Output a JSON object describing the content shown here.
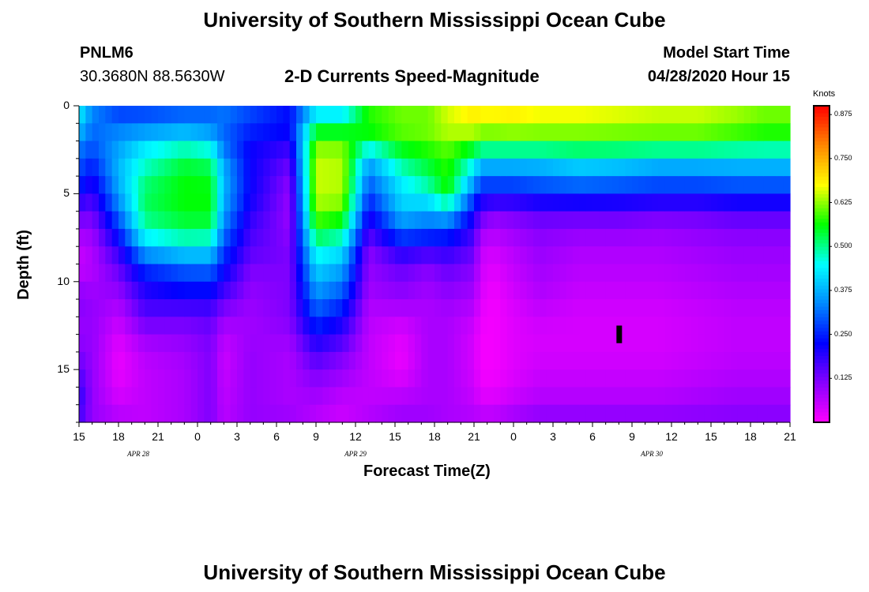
{
  "header": {
    "title": "University of Southern Mississippi Ocean Cube",
    "station_id": "PNLM6",
    "coordinates": "30.3680N 88.5630W",
    "plot_title": "2-D Currents Speed-Magnitude",
    "model_start_label": "Model Start Time",
    "model_start_value": "04/28/2020 Hour 15"
  },
  "footer": {
    "title": "University of Southern Mississippi Ocean Cube"
  },
  "colors": {
    "stops": [
      "#ff00ff",
      "#8800ff",
      "#0000ff",
      "#0088ff",
      "#00ffff",
      "#00ff00",
      "#ffff00",
      "#ff8800",
      "#ff0000"
    ],
    "marker": "#000000"
  },
  "chart_data": {
    "type": "heatmap",
    "title": "2-D Currents Speed-Magnitude",
    "xlabel": "Forecast Time(Z)",
    "ylabel": "Depth (ft)",
    "units": "Knots",
    "x_hours_range": [
      0,
      54
    ],
    "x_tick_labels": [
      "15",
      "18",
      "21",
      "0",
      "3",
      "6",
      "9",
      "12",
      "15",
      "18",
      "21",
      "0",
      "3",
      "6",
      "9",
      "12",
      "15",
      "18",
      "21"
    ],
    "date_labels": [
      {
        "label": "APR 28",
        "hour": 4.5
      },
      {
        "label": "APR 29",
        "hour": 21
      },
      {
        "label": "APR 30",
        "hour": 43.5
      }
    ],
    "ylim": [
      0,
      18
    ],
    "y_tick_labels": [
      "0",
      "5",
      "10",
      "15"
    ],
    "y_ticks": [
      0,
      5,
      10,
      15
    ],
    "colorbar": {
      "label": "Knots",
      "range": [
        0,
        0.9
      ],
      "ticks": [
        0.125,
        0.25,
        0.375,
        0.5,
        0.625,
        0.75,
        0.875
      ],
      "tick_labels": [
        "0.125",
        "0.250",
        "0.375",
        "0.500",
        "0.625",
        "0.750",
        "0.875"
      ]
    },
    "depth_levels_ft": [
      0,
      1,
      2,
      3,
      4,
      5,
      6,
      7,
      8,
      9,
      10,
      11,
      12,
      13,
      14,
      15,
      16,
      17,
      18
    ],
    "profiles": {
      "key_hours": [
        0,
        1,
        3,
        5,
        8,
        10,
        11,
        13,
        16,
        18,
        20,
        22,
        24.5,
        26.5,
        28,
        30,
        30.5,
        31.5,
        33,
        35,
        38,
        41,
        44,
        47,
        50,
        52,
        54
      ],
      "speeds": [
        [
          0.45,
          0.42,
          0.35,
          0.3,
          0.28,
          0.22,
          0.15,
          0.1,
          0.06,
          0.05,
          0.08,
          0.12,
          0.1,
          0.1,
          0.12,
          0.15,
          0.18,
          0.2,
          0.15
        ],
        [
          0.35,
          0.32,
          0.3,
          0.27,
          0.22,
          0.18,
          0.14,
          0.1,
          0.08,
          0.07,
          0.08,
          0.1,
          0.1,
          0.1,
          0.1,
          0.1,
          0.1,
          0.1,
          0.1
        ],
        [
          0.25,
          0.32,
          0.35,
          0.38,
          0.38,
          0.36,
          0.32,
          0.26,
          0.2,
          0.15,
          0.12,
          0.09,
          0.06,
          0.04,
          0.02,
          0.02,
          0.03,
          0.05,
          0.08
        ],
        [
          0.28,
          0.3,
          0.42,
          0.45,
          0.5,
          0.52,
          0.52,
          0.48,
          0.4,
          0.28,
          0.22,
          0.18,
          0.15,
          0.1,
          0.07,
          0.06,
          0.06,
          0.06,
          0.06
        ],
        [
          0.3,
          0.32,
          0.45,
          0.52,
          0.56,
          0.56,
          0.56,
          0.52,
          0.45,
          0.32,
          0.26,
          0.2,
          0.14,
          0.11,
          0.09,
          0.08,
          0.08,
          0.08,
          0.08
        ],
        [
          0.32,
          0.3,
          0.42,
          0.5,
          0.55,
          0.56,
          0.56,
          0.52,
          0.44,
          0.33,
          0.26,
          0.2,
          0.15,
          0.13,
          0.12,
          0.12,
          0.12,
          0.12,
          0.12
        ],
        [
          0.32,
          0.32,
          0.3,
          0.36,
          0.38,
          0.38,
          0.36,
          0.33,
          0.28,
          0.24,
          0.2,
          0.15,
          0.1,
          0.07,
          0.05,
          0.05,
          0.06,
          0.06,
          0.07
        ],
        [
          0.28,
          0.28,
          0.22,
          0.22,
          0.22,
          0.22,
          0.2,
          0.17,
          0.16,
          0.13,
          0.11,
          0.1,
          0.09,
          0.09,
          0.1,
          0.1,
          0.1,
          0.1,
          0.1
        ],
        [
          0.22,
          0.24,
          0.2,
          0.15,
          0.12,
          0.1,
          0.1,
          0.1,
          0.12,
          0.12,
          0.12,
          0.12,
          0.12,
          0.1,
          0.08,
          0.08,
          0.08,
          0.08,
          0.1
        ],
        [
          0.38,
          0.5,
          0.6,
          0.65,
          0.65,
          0.65,
          0.62,
          0.56,
          0.48,
          0.42,
          0.38,
          0.33,
          0.28,
          0.22,
          0.17,
          0.13,
          0.1,
          0.08,
          0.06
        ],
        [
          0.38,
          0.5,
          0.6,
          0.64,
          0.64,
          0.64,
          0.6,
          0.52,
          0.44,
          0.38,
          0.33,
          0.28,
          0.22,
          0.18,
          0.13,
          0.1,
          0.08,
          0.05,
          0.05
        ],
        [
          0.55,
          0.6,
          0.52,
          0.38,
          0.32,
          0.28,
          0.22,
          0.18,
          0.12,
          0.1,
          0.1,
          0.08,
          0.07,
          0.06,
          0.06,
          0.06,
          0.06,
          0.06,
          0.08
        ],
        [
          0.6,
          0.62,
          0.58,
          0.52,
          0.45,
          0.42,
          0.4,
          0.32,
          0.22,
          0.15,
          0.12,
          0.1,
          0.06,
          0.03,
          0.02,
          0.02,
          0.05,
          0.08,
          0.1
        ],
        [
          0.6,
          0.62,
          0.6,
          0.55,
          0.52,
          0.46,
          0.37,
          0.3,
          0.2,
          0.12,
          0.1,
          0.08,
          0.08,
          0.08,
          0.08,
          0.08,
          0.08,
          0.08,
          0.1
        ],
        [
          0.65,
          0.66,
          0.62,
          0.58,
          0.58,
          0.56,
          0.42,
          0.28,
          0.2,
          0.15,
          0.12,
          0.1,
          0.08,
          0.08,
          0.08,
          0.08,
          0.08,
          0.08,
          0.08
        ],
        [
          0.7,
          0.68,
          0.6,
          0.48,
          0.4,
          0.3,
          0.22,
          0.18,
          0.15,
          0.12,
          0.1,
          0.08,
          0.06,
          0.04,
          0.04,
          0.04,
          0.05,
          0.06,
          0.08
        ],
        [
          0.7,
          0.66,
          0.58,
          0.42,
          0.32,
          0.24,
          0.16,
          0.1,
          0.06,
          0.05,
          0.04,
          0.03,
          0.02,
          0.01,
          0.01,
          0.01,
          0.02,
          0.04,
          0.08
        ],
        [
          0.7,
          0.66,
          0.58,
          0.42,
          0.32,
          0.24,
          0.12,
          0.08,
          0.05,
          0.03,
          0.02,
          0.01,
          0.01,
          0.01,
          0.01,
          0.01,
          0.02,
          0.04,
          0.08
        ],
        [
          0.7,
          0.67,
          0.58,
          0.42,
          0.32,
          0.24,
          0.13,
          0.1,
          0.07,
          0.06,
          0.05,
          0.04,
          0.03,
          0.03,
          0.03,
          0.03,
          0.04,
          0.06,
          0.1
        ],
        [
          0.68,
          0.66,
          0.58,
          0.42,
          0.33,
          0.26,
          0.15,
          0.12,
          0.1,
          0.09,
          0.08,
          0.07,
          0.05,
          0.04,
          0.04,
          0.05,
          0.06,
          0.08,
          0.12
        ],
        [
          0.68,
          0.66,
          0.58,
          0.45,
          0.35,
          0.27,
          0.15,
          0.11,
          0.08,
          0.07,
          0.06,
          0.05,
          0.04,
          0.04,
          0.04,
          0.05,
          0.06,
          0.08,
          0.12
        ],
        [
          0.67,
          0.65,
          0.58,
          0.44,
          0.34,
          0.26,
          0.15,
          0.11,
          0.08,
          0.07,
          0.06,
          0.05,
          0.04,
          0.04,
          0.04,
          0.05,
          0.06,
          0.08,
          0.12
        ],
        [
          0.66,
          0.64,
          0.58,
          0.42,
          0.32,
          0.25,
          0.14,
          0.1,
          0.08,
          0.07,
          0.06,
          0.05,
          0.04,
          0.04,
          0.04,
          0.05,
          0.06,
          0.08,
          0.12
        ],
        [
          0.66,
          0.64,
          0.58,
          0.42,
          0.32,
          0.25,
          0.14,
          0.11,
          0.09,
          0.08,
          0.07,
          0.06,
          0.05,
          0.05,
          0.05,
          0.06,
          0.07,
          0.09,
          0.12
        ],
        [
          0.64,
          0.62,
          0.56,
          0.42,
          0.33,
          0.26,
          0.16,
          0.12,
          0.1,
          0.09,
          0.08,
          0.07,
          0.06,
          0.06,
          0.06,
          0.07,
          0.08,
          0.1,
          0.12
        ],
        [
          0.62,
          0.6,
          0.55,
          0.42,
          0.33,
          0.26,
          0.16,
          0.12,
          0.1,
          0.09,
          0.08,
          0.07,
          0.06,
          0.06,
          0.06,
          0.07,
          0.08,
          0.1,
          0.12
        ],
        [
          0.62,
          0.6,
          0.55,
          0.42,
          0.33,
          0.26,
          0.16,
          0.12,
          0.1,
          0.09,
          0.08,
          0.07,
          0.06,
          0.06,
          0.06,
          0.07,
          0.08,
          0.1,
          0.12
        ]
      ]
    },
    "missing_marker": {
      "hour": 41,
      "depth_range_ft": [
        12.5,
        13.5
      ]
    }
  }
}
